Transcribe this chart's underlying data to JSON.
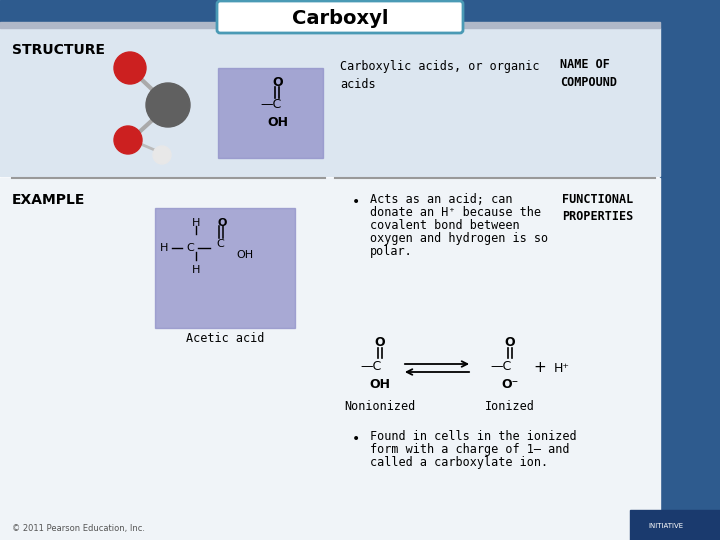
{
  "title": "Carboxyl",
  "bg_white": "#ffffff",
  "bg_light": "#dce6f0",
  "header_bg": "#2e5b8e",
  "header_right_bg": "#2e5b8e",
  "title_box_color": "#ffffff",
  "title_box_border": "#4a9ab5",
  "structure_label": "STRUCTURE",
  "example_label": "EXAMPLE",
  "carboxylic_text": "Carboxylic acids, or organic\nacids",
  "name_of_compound": "NAME OF\nCOMPOUND",
  "functional_properties": "FUNCTIONAL\nPROPERTIES",
  "acetic_acid": "Acetic acid",
  "bullet1_line1": "Acts as an acid; can",
  "bullet1_line2": "donate an H⁺ because the",
  "bullet1_line3": "covalent bond between",
  "bullet1_line4": "oxygen and hydrogen is so",
  "bullet1_line5": "polar.",
  "nonionized": "Nonionized",
  "ionized": "Ionized",
  "bullet2_line1": "Found in cells in the ionized",
  "bullet2_line2": "form with a charge of 1– and",
  "bullet2_line3": "called a carboxylate ion.",
  "copyright": "© 2011 Pearson Education, Inc.",
  "purple_box": "#9090c8",
  "divider_color": "#999999",
  "text_color": "#000000",
  "title_fontsize": 14,
  "label_fontsize": 10,
  "body_fontsize": 8.5
}
